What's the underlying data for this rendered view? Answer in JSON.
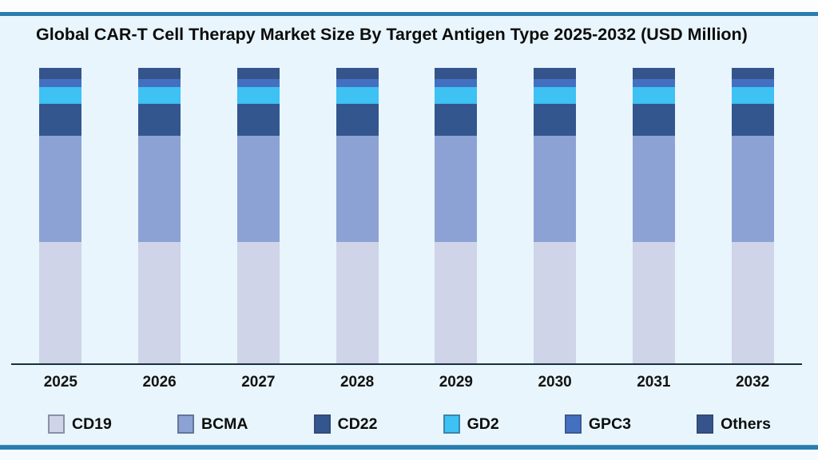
{
  "page": {
    "background_color": "#e8f5fc",
    "edge_strip_color": "#fbfdff",
    "rule_color": "#2a7dad",
    "axis_color": "#16303e"
  },
  "chart_data": {
    "type": "bar",
    "stacked": true,
    "title": "Global CAR-T Cell Therapy Market Size By Target Antigen Type 2025-2032 (USD Million)",
    "unit": "USD Million",
    "xlabel": "",
    "ylabel": "",
    "axis_note": "no numeric y-axis rendered; all yearly bars are visually equal height",
    "values_are": "estimated percent share of each bar's total height",
    "legend_position": "bottom",
    "grid": false,
    "categories": [
      "2025",
      "2026",
      "2027",
      "2028",
      "2029",
      "2030",
      "2031",
      "2032"
    ],
    "series": [
      {
        "name": "CD19",
        "color": "#cfd4e8",
        "values": [
          41.1,
          41.1,
          41.1,
          41.1,
          41.1,
          41.1,
          41.1,
          41.1
        ]
      },
      {
        "name": "BCMA",
        "color": "#8ca2d4",
        "values": [
          36.0,
          36.0,
          36.0,
          36.0,
          36.0,
          36.0,
          36.0,
          36.0
        ]
      },
      {
        "name": "CD22",
        "color": "#34568f",
        "values": [
          10.8,
          10.8,
          10.8,
          10.8,
          10.8,
          10.8,
          10.8,
          10.8
        ]
      },
      {
        "name": "GD2",
        "color": "#3ec1f3",
        "values": [
          5.6,
          5.6,
          5.6,
          5.6,
          5.6,
          5.6,
          5.6,
          5.6
        ]
      },
      {
        "name": "GPC3",
        "color": "#4470c1",
        "values": [
          2.7,
          2.7,
          2.7,
          2.7,
          2.7,
          2.7,
          2.7,
          2.7
        ]
      },
      {
        "name": "Others",
        "color": "#36548c",
        "values": [
          3.8,
          3.8,
          3.8,
          3.8,
          3.8,
          3.8,
          3.8,
          3.8
        ]
      }
    ]
  }
}
